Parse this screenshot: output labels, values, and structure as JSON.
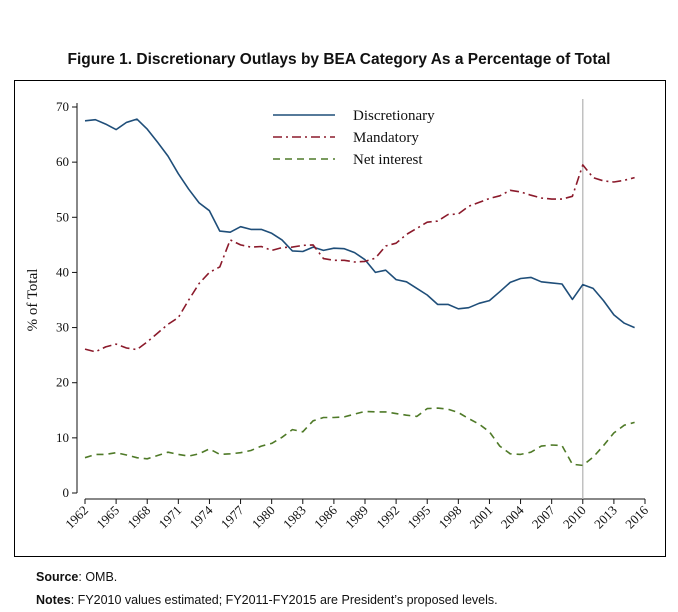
{
  "figure_title": "Figure 1. Discretionary Outlays by BEA Category As a Percentage of Total",
  "source_label": "Source",
  "source_text": ": OMB.",
  "notes_label": "Notes",
  "notes_text": ": FY2010 values estimated; FY2011-FY2015 are President’s proposed levels.",
  "chart_data": {
    "type": "line",
    "ylabel": "% of Total",
    "xlabel": "",
    "ylim": [
      0,
      70
    ],
    "yticks": [
      0,
      10,
      20,
      30,
      40,
      50,
      60,
      70
    ],
    "xlim": [
      1962,
      2016
    ],
    "xticks": [
      1962,
      1965,
      1968,
      1971,
      1974,
      1977,
      1980,
      1983,
      1986,
      1989,
      1992,
      1995,
      1998,
      2001,
      2004,
      2007,
      2010,
      2013,
      2016
    ],
    "vertical_reference_x": 2010,
    "legend_position": "top-center",
    "grid": false,
    "series": [
      {
        "name": "Discretionary",
        "color": "#1f4e79",
        "dash": "solid",
        "x": [
          1962,
          1963,
          1964,
          1965,
          1966,
          1967,
          1968,
          1969,
          1970,
          1971,
          1972,
          1973,
          1974,
          1975,
          1976,
          1977,
          1978,
          1979,
          1980,
          1981,
          1982,
          1983,
          1984,
          1985,
          1986,
          1987,
          1988,
          1989,
          1990,
          1991,
          1992,
          1993,
          1994,
          1995,
          1996,
          1997,
          1998,
          1999,
          2000,
          2001,
          2002,
          2003,
          2004,
          2005,
          2006,
          2007,
          2008,
          2009,
          2010,
          2011,
          2012,
          2013,
          2014,
          2015
        ],
        "values": [
          67.5,
          67.7,
          66.9,
          65.9,
          67.2,
          67.8,
          66.0,
          63.6,
          61.1,
          57.9,
          55.1,
          52.6,
          51.2,
          47.5,
          47.3,
          48.3,
          47.8,
          47.8,
          47.1,
          45.9,
          43.9,
          43.8,
          44.6,
          44.0,
          44.4,
          44.3,
          43.6,
          42.3,
          40.0,
          40.4,
          38.7,
          38.3,
          37.1,
          35.9,
          34.2,
          34.2,
          33.4,
          33.6,
          34.4,
          34.9,
          36.5,
          38.2,
          38.9,
          39.1,
          38.3,
          38.1,
          37.9,
          35.1,
          37.8,
          37.1,
          34.9,
          32.3,
          30.8,
          30.0
        ]
      },
      {
        "name": "Mandatory",
        "color": "#8b1a2b",
        "dash": "dashdot",
        "x": [
          1962,
          1963,
          1964,
          1965,
          1966,
          1967,
          1968,
          1969,
          1970,
          1971,
          1972,
          1973,
          1974,
          1975,
          1976,
          1977,
          1978,
          1979,
          1980,
          1981,
          1982,
          1983,
          1984,
          1985,
          1986,
          1987,
          1988,
          1989,
          1990,
          1991,
          1992,
          1993,
          1994,
          1995,
          1996,
          1997,
          1998,
          1999,
          2000,
          2001,
          2002,
          2003,
          2004,
          2005,
          2006,
          2007,
          2008,
          2009,
          2010,
          2011,
          2012,
          2013,
          2014,
          2015
        ],
        "values": [
          26.1,
          25.6,
          26.5,
          27.0,
          26.3,
          26.0,
          27.4,
          29.0,
          30.6,
          31.8,
          35.0,
          38.0,
          40.0,
          41.0,
          45.9,
          45.0,
          44.6,
          44.7,
          44.0,
          44.5,
          44.6,
          44.9,
          45.0,
          42.5,
          42.2,
          42.2,
          41.9,
          42.0,
          42.6,
          44.8,
          45.3,
          46.9,
          48.0,
          49.1,
          49.3,
          50.5,
          50.6,
          52.0,
          52.7,
          53.4,
          53.9,
          54.9,
          54.6,
          54.0,
          53.5,
          53.3,
          53.3,
          53.8,
          59.5,
          57.2,
          56.6,
          56.4,
          56.7,
          57.2
        ]
      },
      {
        "name": "Net interest",
        "color": "#4f7a28",
        "dash": "dashed",
        "x": [
          1962,
          1963,
          1964,
          1965,
          1966,
          1967,
          1968,
          1969,
          1970,
          1971,
          1972,
          1973,
          1974,
          1975,
          1976,
          1977,
          1978,
          1979,
          1980,
          1981,
          1982,
          1983,
          1984,
          1985,
          1986,
          1987,
          1988,
          1989,
          1990,
          1991,
          1992,
          1993,
          1994,
          1995,
          1996,
          1997,
          1998,
          1999,
          2000,
          2001,
          2002,
          2003,
          2004,
          2005,
          2006,
          2007,
          2008,
          2009,
          2010,
          2011,
          2012,
          2013,
          2014,
          2015
        ],
        "values": [
          6.4,
          7.0,
          7.0,
          7.3,
          6.9,
          6.4,
          6.2,
          6.8,
          7.4,
          7.0,
          6.7,
          7.1,
          8.0,
          7.0,
          7.1,
          7.3,
          7.7,
          8.5,
          9.0,
          10.1,
          11.5,
          11.1,
          13.1,
          13.7,
          13.7,
          13.8,
          14.3,
          14.8,
          14.7,
          14.7,
          14.4,
          14.1,
          13.9,
          15.3,
          15.4,
          15.2,
          14.6,
          13.5,
          12.5,
          11.1,
          8.5,
          7.1,
          7.0,
          7.4,
          8.5,
          8.7,
          8.6,
          5.2,
          5.0,
          6.5,
          8.6,
          10.9,
          12.3,
          12.8
        ]
      }
    ]
  }
}
